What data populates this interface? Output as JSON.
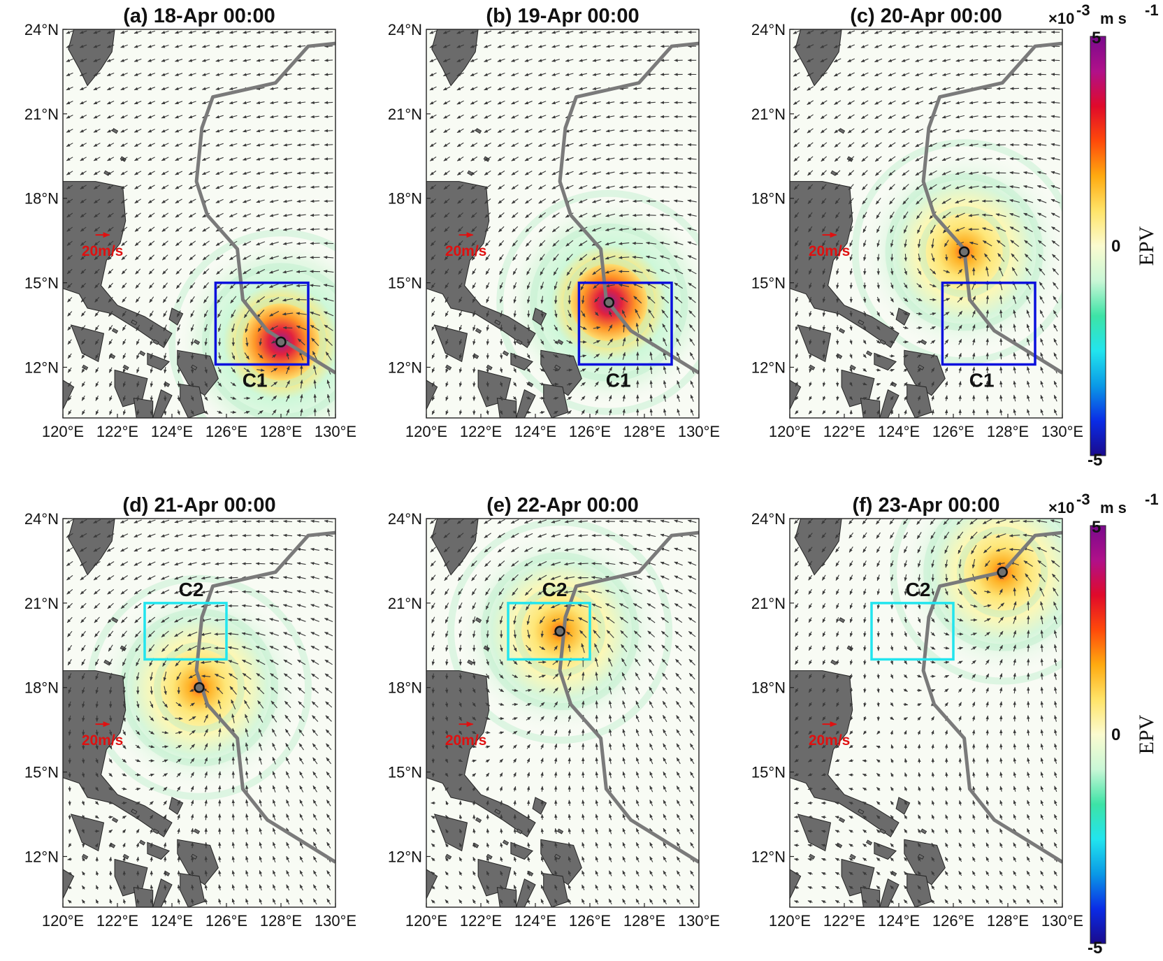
{
  "panels": [
    {
      "id": "a",
      "title": "(a) 18-Apr 00:00",
      "center": [
        128.0,
        12.9
      ],
      "strength": 1.0,
      "box_label": "C1",
      "box_color": "#0a10dd"
    },
    {
      "id": "b",
      "title": "(b) 19-Apr 00:00",
      "center": [
        126.7,
        14.3
      ],
      "strength": 0.85,
      "box_label": "C1",
      "box_color": "#0a10dd"
    },
    {
      "id": "c",
      "title": "(c) 20-Apr 00:00",
      "center": [
        126.4,
        16.1
      ],
      "strength": 0.72,
      "box_label": "C1",
      "box_color": "#0a10dd"
    },
    {
      "id": "d",
      "title": "(d) 21-Apr 00:00",
      "center": [
        125.0,
        18.0
      ],
      "strength": 0.55,
      "box_label": "C2",
      "box_color": "#22e5ee"
    },
    {
      "id": "e",
      "title": "(e) 22-Apr 00:00",
      "center": [
        124.9,
        20.0
      ],
      "strength": 0.5,
      "box_label": "C2",
      "box_color": "#22e5ee"
    },
    {
      "id": "f",
      "title": "(f) 23-Apr 00:00",
      "center": [
        127.8,
        22.1
      ],
      "strength": 0.5,
      "box_label": "C2",
      "box_color": "#22e5ee"
    }
  ],
  "axes": {
    "lon_range": [
      120,
      130
    ],
    "lat_range": [
      10.2,
      24
    ],
    "x_ticks": [
      "120°E",
      "122°E",
      "124°E",
      "126°E",
      "128°E",
      "130°E"
    ],
    "y_ticks": [
      "24°N",
      "21°N",
      "18°N",
      "15°N",
      "12°N"
    ]
  },
  "boxes": {
    "C1": {
      "lon": [
        125.6,
        129.0
      ],
      "lat": [
        12.1,
        15.0
      ]
    },
    "C2": {
      "lon": [
        123.0,
        126.0
      ],
      "lat": [
        19.0,
        21.0
      ]
    }
  },
  "track": [
    [
      130,
      11.8
    ],
    [
      127.5,
      13.3
    ],
    [
      126.6,
      14.4
    ],
    [
      126.4,
      16.2
    ],
    [
      125.3,
      17.4
    ],
    [
      124.9,
      18.6
    ],
    [
      125.1,
      20.5
    ],
    [
      125.5,
      21.6
    ],
    [
      127.8,
      22.1
    ],
    [
      129,
      23.4
    ],
    [
      130,
      23.5
    ]
  ],
  "scale_arrow_label": "20m/s",
  "colorbar": {
    "label": "EPV",
    "exponent": "×10",
    "exponent_power": "-3",
    "unit": "m s",
    "unit_power": "-1",
    "max_label": "5",
    "mid_label": "0",
    "min_label": "-5",
    "colors": [
      "#1a0a8c",
      "#0a2ce6",
      "#0a9ae6",
      "#22e5ee",
      "#3de3a6",
      "#c9f7d6",
      "#fbfbd0",
      "#ffe46a",
      "#ffaa10",
      "#ff4a0a",
      "#e00a2a",
      "#b0108a",
      "#7a0a8c"
    ]
  },
  "colors": {
    "land": "#6b6b6b",
    "track": "#7a7a7a",
    "arrow": "#3a3a3a",
    "scale_arrow": "#e01010"
  }
}
